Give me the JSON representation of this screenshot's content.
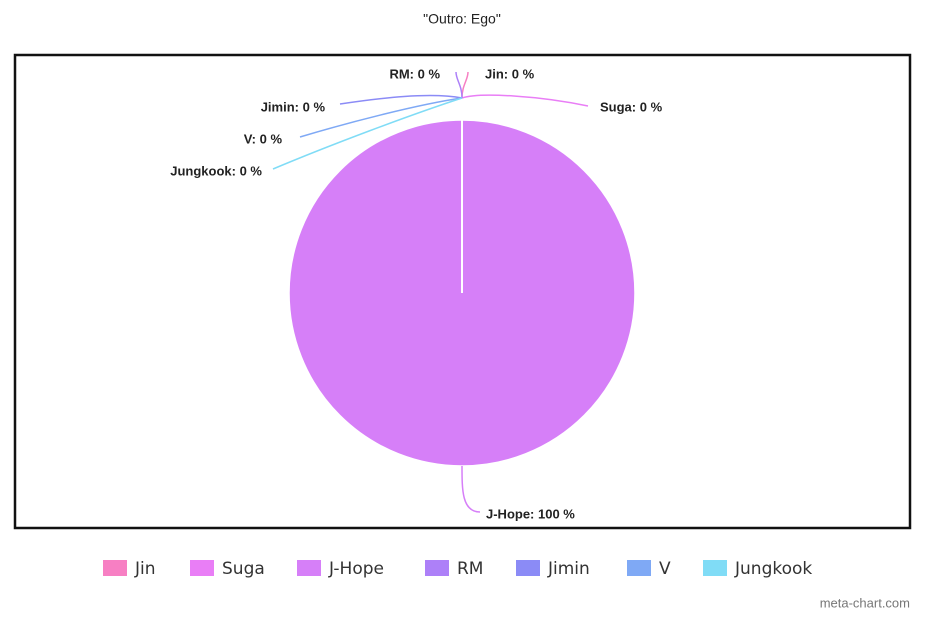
{
  "chart_data": {
    "type": "pie",
    "title": "\"Outro: Ego\"",
    "categories": [
      "Jin",
      "Suga",
      "J-Hope",
      "RM",
      "Jimin",
      "V",
      "Jungkook"
    ],
    "values": [
      0,
      0,
      100,
      0,
      0,
      0,
      0
    ],
    "value_labels": [
      "Jin: 0 %",
      "Suga: 0 %",
      "J-Hope: 100 %",
      "RM: 0 %",
      "Jimin: 0 %",
      "V: 0 %",
      "Jungkook: 0 %"
    ],
    "colors": [
      "#f77fc3",
      "#e97ef6",
      "#d67ff8",
      "#ad80f8",
      "#8b8bf6",
      "#7fa9f5",
      "#80dcf6"
    ],
    "legend": "bottom",
    "credit": "meta-chart.com"
  }
}
